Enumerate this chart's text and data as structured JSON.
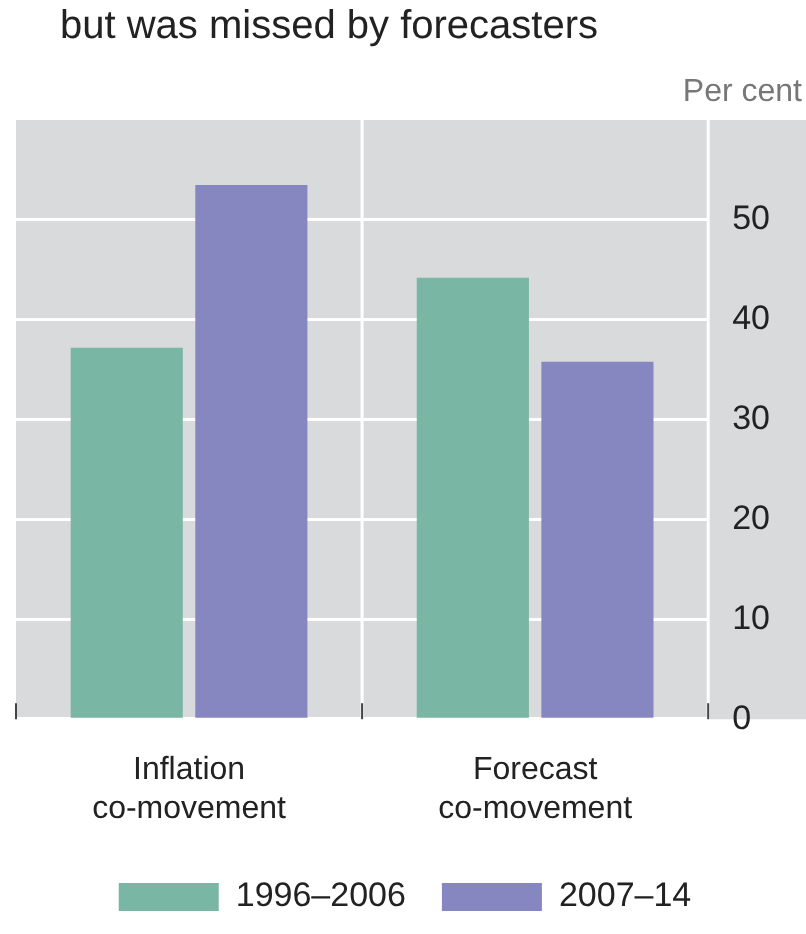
{
  "chart_data": {
    "type": "bar",
    "title": "but was missed by forecasters",
    "ylabel": "Per cent",
    "categories": [
      "Inflation co-movement",
      "Forecast co-movement"
    ],
    "series": [
      {
        "name": "1996–2006",
        "color": "#79b6a4",
        "values": [
          37.2,
          44.2
        ]
      },
      {
        "name": "2007–14",
        "color": "#8687c0",
        "values": [
          53.5,
          35.8
        ]
      }
    ],
    "ylim": [
      0,
      60
    ],
    "yticks": [
      0,
      10,
      20,
      30,
      40,
      50
    ],
    "grid": true,
    "legend": "bottom"
  }
}
